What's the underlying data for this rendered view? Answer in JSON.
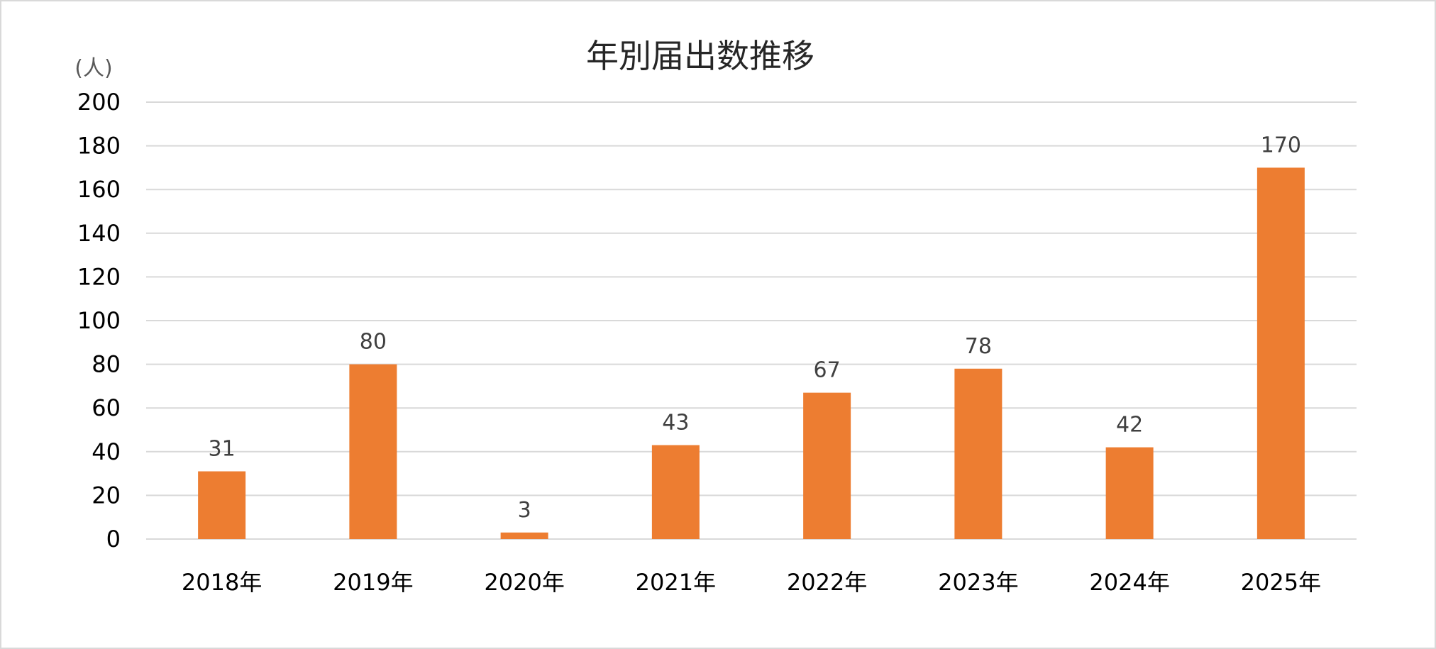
{
  "chart_data": {
    "type": "bar",
    "title": "年別届出数推移",
    "ylabel": "(人)",
    "xlabel": "",
    "categories": [
      "2018年",
      "2019年",
      "2020年",
      "2021年",
      "2022年",
      "2023年",
      "2024年",
      "2025年"
    ],
    "series": [
      {
        "values": [
          31,
          80,
          3,
          43,
          67,
          78,
          42,
          170
        ]
      }
    ],
    "ylim": [
      0,
      200
    ],
    "yticks": [
      0,
      20,
      40,
      60,
      80,
      100,
      120,
      140,
      160,
      180,
      200
    ],
    "grid": true,
    "legend": "none",
    "data_labels": true,
    "colors": {
      "bar": "#ED7D31",
      "grid": "#D9D9D9"
    }
  }
}
